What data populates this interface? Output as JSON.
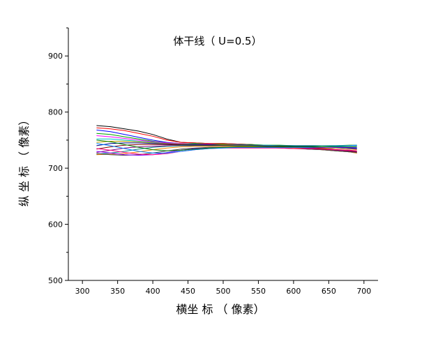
{
  "chart_data": {
    "type": "line",
    "title": "体干线（ U=0.5）",
    "xlabel": "横坐 标 （ 像素）",
    "ylabel": "纵 坐 标 （ 像素）",
    "xlim": [
      280,
      720
    ],
    "ylim": [
      500,
      950
    ],
    "xticks": [
      300,
      350,
      400,
      450,
      500,
      550,
      600,
      650,
      700
    ],
    "yticks": [
      500,
      600,
      700,
      800,
      900
    ],
    "grid": false,
    "legend": "none",
    "x": [
      320,
      340,
      360,
      380,
      400,
      420,
      440,
      460,
      480,
      500,
      520,
      540,
      560,
      580,
      600,
      620,
      640,
      660,
      680,
      690
    ],
    "series": [
      {
        "color": "#000000",
        "values": [
          776,
          774,
          770,
          766,
          760,
          752,
          746,
          745,
          744,
          744,
          743,
          742,
          740,
          738,
          736,
          734,
          733,
          731,
          729,
          727
        ]
      },
      {
        "color": "#ff0000",
        "values": [
          772,
          770,
          767,
          762,
          757,
          750,
          746,
          745,
          744,
          744,
          743,
          742,
          741,
          739,
          737,
          736,
          734,
          732,
          730,
          729
        ]
      },
      {
        "color": "#0000ff",
        "values": [
          768,
          765,
          760,
          755,
          750,
          746,
          744,
          743,
          743,
          742,
          742,
          741,
          740,
          739,
          738,
          737,
          736,
          735,
          734,
          734
        ]
      },
      {
        "color": "#00a000",
        "values": [
          762,
          760,
          756,
          752,
          748,
          745,
          744,
          744,
          743,
          743,
          742,
          742,
          741,
          741,
          740,
          740,
          740,
          740,
          741,
          741
        ]
      },
      {
        "color": "#ff00ff",
        "values": [
          758,
          756,
          753,
          750,
          747,
          745,
          744,
          743,
          743,
          742,
          742,
          741,
          740,
          739,
          738,
          737,
          736,
          735,
          734,
          734
        ]
      },
      {
        "color": "#00c0c0",
        "values": [
          752,
          752,
          750,
          748,
          746,
          744,
          743,
          743,
          742,
          742,
          742,
          741,
          741,
          740,
          740,
          739,
          738,
          737,
          736,
          736
        ]
      },
      {
        "color": "#c0a000",
        "values": [
          746,
          748,
          748,
          747,
          745,
          744,
          743,
          742,
          742,
          742,
          741,
          741,
          740,
          739,
          738,
          737,
          736,
          735,
          734,
          733
        ]
      },
      {
        "color": "#000080",
        "values": [
          740,
          744,
          745,
          745,
          744,
          743,
          742,
          742,
          742,
          741,
          741,
          741,
          740,
          740,
          739,
          739,
          738,
          737,
          736,
          735
        ]
      },
      {
        "color": "#800000",
        "values": [
          734,
          738,
          741,
          742,
          742,
          742,
          741,
          741,
          741,
          741,
          741,
          740,
          740,
          739,
          738,
          737,
          735,
          733,
          731,
          730
        ]
      },
      {
        "color": "#800080",
        "values": [
          728,
          732,
          736,
          738,
          739,
          740,
          740,
          740,
          740,
          740,
          740,
          739,
          739,
          738,
          737,
          736,
          734,
          732,
          730,
          729
        ]
      },
      {
        "color": "#008080",
        "values": [
          725,
          727,
          730,
          734,
          737,
          739,
          740,
          740,
          740,
          740,
          740,
          740,
          740,
          740,
          740,
          740,
          740,
          740,
          740,
          740
        ]
      },
      {
        "color": "#ff8000",
        "values": [
          724,
          725,
          726,
          729,
          733,
          736,
          738,
          739,
          739,
          739,
          739,
          739,
          738,
          737,
          736,
          735,
          733,
          731,
          729,
          727
        ]
      },
      {
        "color": "#404040",
        "values": [
          726,
          724,
          723,
          724,
          727,
          731,
          734,
          736,
          737,
          737,
          737,
          737,
          737,
          736,
          735,
          734,
          733,
          731,
          729,
          728
        ]
      },
      {
        "color": "#8000ff",
        "values": [
          730,
          727,
          724,
          723,
          724,
          728,
          732,
          735,
          736,
          737,
          737,
          737,
          737,
          737,
          737,
          737,
          737,
          737,
          737,
          737
        ]
      },
      {
        "color": "#ff0080",
        "values": [
          735,
          732,
          728,
          725,
          724,
          726,
          730,
          733,
          735,
          736,
          736,
          736,
          736,
          736,
          735,
          735,
          734,
          733,
          732,
          731
        ]
      },
      {
        "color": "#0080ff",
        "values": [
          744,
          740,
          735,
          730,
          727,
          727,
          730,
          733,
          735,
          736,
          737,
          737,
          737,
          737,
          737,
          737,
          738,
          739,
          740,
          741
        ]
      },
      {
        "color": "#008000",
        "values": [
          750,
          747,
          742,
          737,
          733,
          731,
          732,
          734,
          736,
          737,
          738,
          738,
          738,
          738,
          738,
          738,
          738,
          738,
          738,
          738
        ]
      }
    ]
  }
}
